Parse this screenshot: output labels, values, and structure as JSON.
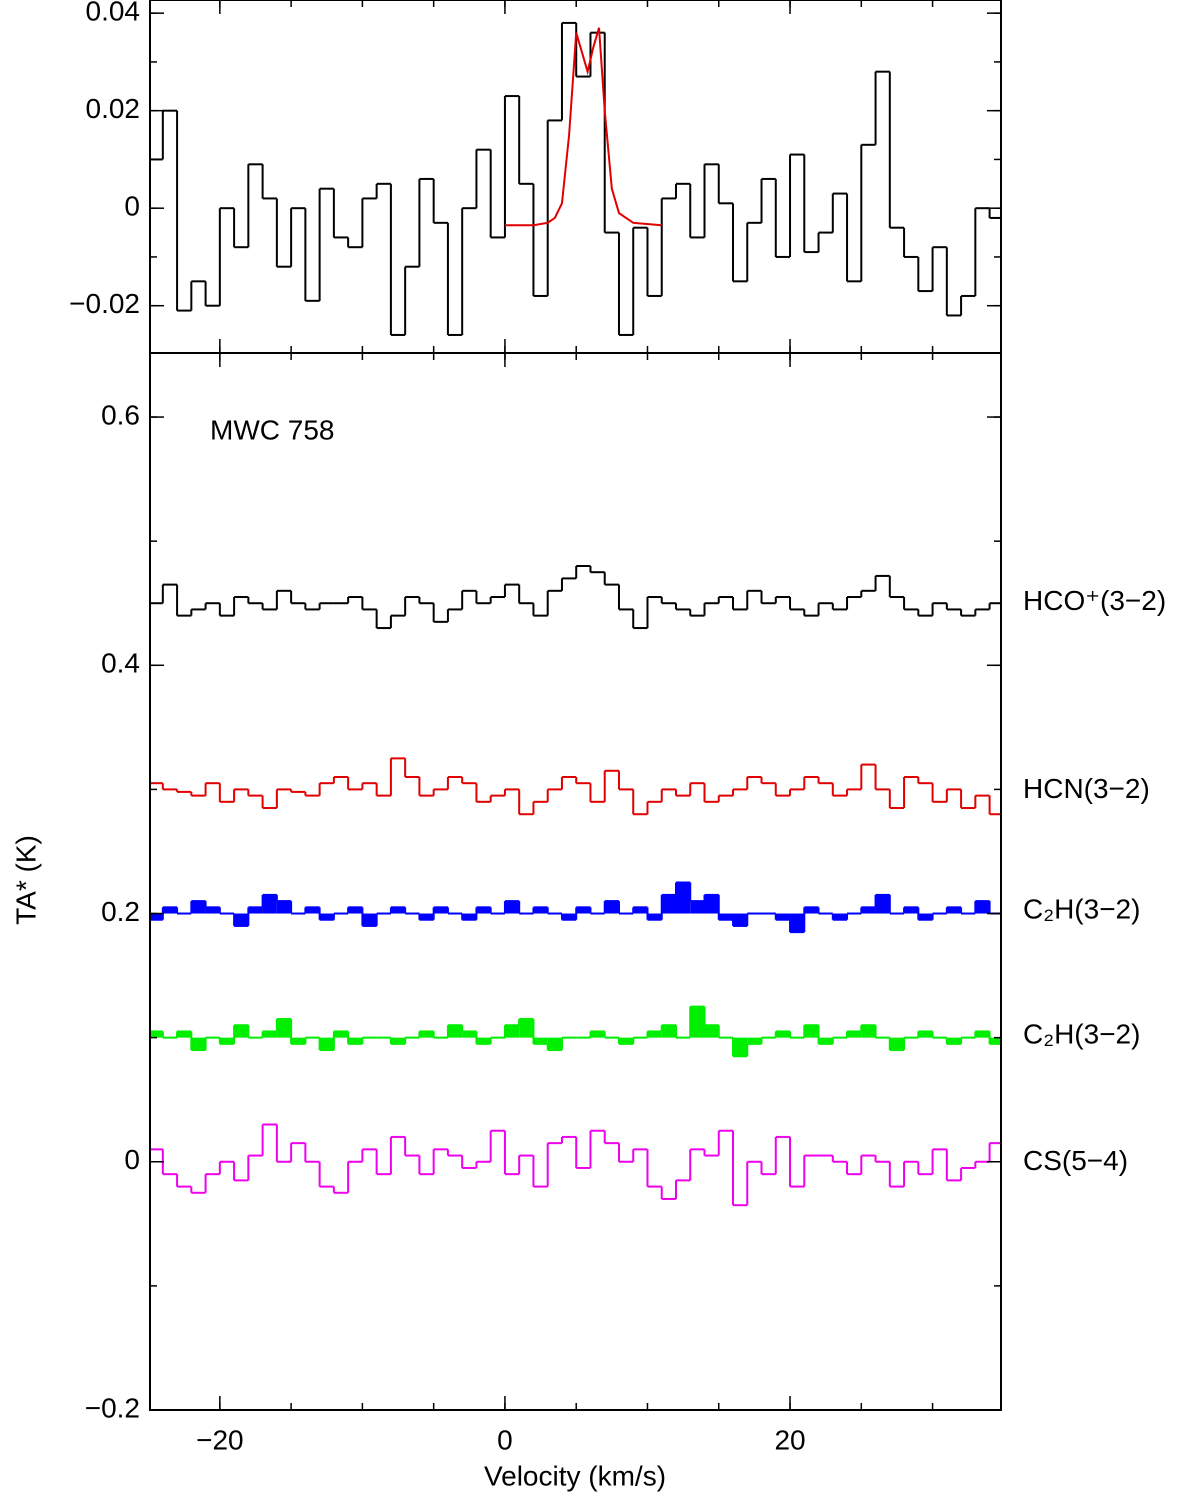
{
  "chart_data": [
    {
      "type": "step",
      "xlim": [
        -24.9,
        34.8
      ],
      "ylim": [
        -0.0297,
        0.0427
      ],
      "yticks": [
        {
          "value": -0.02,
          "label": "−0.02"
        },
        0,
        0.02,
        0.04
      ],
      "x": [
        -24.5,
        -23.5,
        -22.5,
        -21.5,
        -20.5,
        -19.5,
        -18.5,
        -17.5,
        -16.5,
        -15.5,
        -14.5,
        -13.5,
        -12.5,
        -11.5,
        -10.5,
        -9.5,
        -8.5,
        -7.5,
        -6.5,
        -5.5,
        -4.5,
        -3.5,
        -2.5,
        -1.5,
        -0.5,
        0.5,
        1.5,
        2.5,
        3.5,
        4.5,
        5.5,
        6.5,
        7.5,
        8.5,
        9.5,
        10.5,
        11.5,
        12.5,
        13.5,
        14.5,
        15.5,
        16.5,
        17.5,
        18.5,
        19.5,
        20.5,
        21.5,
        22.5,
        23.5,
        24.5,
        25.5,
        26.5,
        27.5,
        28.5,
        29.5,
        30.5,
        31.5,
        32.5,
        33.5,
        34.5
      ],
      "series": [
        {
          "color": "#000000",
          "style": "step",
          "values": [
            0.01,
            0.02,
            -0.021,
            -0.015,
            -0.02,
            0.0,
            -0.008,
            0.009,
            0.002,
            -0.012,
            0.0,
            -0.019,
            0.004,
            -0.006,
            -0.008,
            0.002,
            0.005,
            -0.026,
            -0.012,
            0.006,
            -0.003,
            -0.026,
            0.0,
            0.012,
            -0.006,
            0.023,
            0.005,
            -0.018,
            0.018,
            0.038,
            0.027,
            0.036,
            -0.005,
            -0.026,
            -0.004,
            -0.018,
            0.002,
            0.005,
            -0.006,
            0.009,
            0.001,
            -0.015,
            -0.003,
            0.006,
            -0.01,
            0.011,
            -0.009,
            -0.005,
            0.003,
            -0.015,
            0.013,
            0.028,
            -0.004,
            -0.01,
            -0.017,
            -0.008,
            -0.022,
            -0.018,
            0.0,
            -0.002
          ]
        },
        {
          "color": "#e00000",
          "style": "line",
          "x": [
            0,
            2,
            3,
            3.5,
            4,
            4.5,
            5,
            5.4,
            5.8,
            6.2,
            6.6,
            7,
            7.5,
            8,
            9,
            11
          ],
          "values": [
            -0.0035,
            -0.0035,
            -0.003,
            -0.002,
            0.001,
            0.015,
            0.036,
            0.032,
            0.028,
            0.033,
            0.037,
            0.02,
            0.004,
            -0.001,
            -0.003,
            -0.0035
          ]
        }
      ]
    },
    {
      "type": "step",
      "annotation": "MWC 758",
      "x_label": "Velocity (km/s)",
      "y_label": "TA* (K)",
      "xlim": [
        -24.9,
        34.8
      ],
      "ylim": [
        -0.2,
        0.6516
      ],
      "xticks": [
        {
          "value": -20,
          "label": "−20"
        },
        0,
        20
      ],
      "yticks": [
        {
          "value": -0.2,
          "label": "−0.2"
        },
        0,
        0.2,
        0.4,
        0.6
      ],
      "x": [
        -24.5,
        -23.5,
        -22.5,
        -21.5,
        -20.5,
        -19.5,
        -18.5,
        -17.5,
        -16.5,
        -15.5,
        -14.5,
        -13.5,
        -12.5,
        -11.5,
        -10.5,
        -9.5,
        -8.5,
        -7.5,
        -6.5,
        -5.5,
        -4.5,
        -3.5,
        -2.5,
        -1.5,
        -0.5,
        0.5,
        1.5,
        2.5,
        3.5,
        4.5,
        5.5,
        6.5,
        7.5,
        8.5,
        9.5,
        10.5,
        11.5,
        12.5,
        13.5,
        14.5,
        15.5,
        16.5,
        17.5,
        18.5,
        19.5,
        20.5,
        21.5,
        22.5,
        23.5,
        24.5,
        25.5,
        26.5,
        27.5,
        28.5,
        29.5,
        30.5,
        31.5,
        32.5,
        33.5,
        34.5
      ],
      "series": [
        {
          "name": "HCO⁺(3−2)",
          "color": "#000000",
          "style": "step",
          "values": [
            0.45,
            0.465,
            0.44,
            0.445,
            0.45,
            0.44,
            0.455,
            0.45,
            0.445,
            0.46,
            0.45,
            0.445,
            0.45,
            0.45,
            0.455,
            0.445,
            0.43,
            0.44,
            0.455,
            0.45,
            0.435,
            0.445,
            0.46,
            0.45,
            0.455,
            0.465,
            0.45,
            0.44,
            0.46,
            0.47,
            0.48,
            0.475,
            0.465,
            0.445,
            0.43,
            0.455,
            0.45,
            0.445,
            0.44,
            0.45,
            0.455,
            0.445,
            0.46,
            0.45,
            0.455,
            0.445,
            0.44,
            0.45,
            0.445,
            0.455,
            0.46,
            0.472,
            0.455,
            0.445,
            0.44,
            0.45,
            0.445,
            0.44,
            0.445,
            0.45
          ]
        },
        {
          "name": "HCN(3−2)",
          "color": "#e00000",
          "style": "step",
          "values": [
            0.305,
            0.3,
            0.298,
            0.295,
            0.305,
            0.29,
            0.3,
            0.295,
            0.285,
            0.3,
            0.298,
            0.295,
            0.305,
            0.31,
            0.3,
            0.305,
            0.295,
            0.325,
            0.31,
            0.295,
            0.3,
            0.31,
            0.305,
            0.29,
            0.295,
            0.3,
            0.28,
            0.29,
            0.3,
            0.31,
            0.305,
            0.29,
            0.315,
            0.3,
            0.28,
            0.29,
            0.3,
            0.295,
            0.305,
            0.29,
            0.295,
            0.3,
            0.31,
            0.305,
            0.295,
            0.3,
            0.31,
            0.305,
            0.295,
            0.3,
            0.32,
            0.3,
            0.285,
            0.31,
            0.305,
            0.29,
            0.3,
            0.285,
            0.295,
            0.28
          ]
        },
        {
          "name": "C₂H(3−2)",
          "color": "#0000ff",
          "style": "step",
          "fill_to": 0.2,
          "values": [
            0.195,
            0.205,
            0.2,
            0.21,
            0.205,
            0.2,
            0.19,
            0.205,
            0.215,
            0.21,
            0.2,
            0.205,
            0.195,
            0.2,
            0.205,
            0.19,
            0.2,
            0.205,
            0.2,
            0.195,
            0.205,
            0.2,
            0.195,
            0.205,
            0.2,
            0.21,
            0.2,
            0.205,
            0.2,
            0.195,
            0.205,
            0.2,
            0.21,
            0.2,
            0.205,
            0.195,
            0.215,
            0.225,
            0.21,
            0.215,
            0.195,
            0.19,
            0.2,
            0.2,
            0.195,
            0.185,
            0.205,
            0.2,
            0.195,
            0.2,
            0.205,
            0.215,
            0.2,
            0.205,
            0.195,
            0.2,
            0.205,
            0.2,
            0.21,
            0.2
          ]
        },
        {
          "name": "C₂H(3−2)",
          "color": "#00ee00",
          "style": "step",
          "fill_to": 0.1,
          "values": [
            0.105,
            0.1,
            0.105,
            0.09,
            0.1,
            0.095,
            0.11,
            0.1,
            0.105,
            0.115,
            0.095,
            0.1,
            0.09,
            0.105,
            0.095,
            0.1,
            0.1,
            0.095,
            0.1,
            0.105,
            0.1,
            0.11,
            0.105,
            0.095,
            0.1,
            0.11,
            0.115,
            0.095,
            0.09,
            0.1,
            0.1,
            0.105,
            0.1,
            0.095,
            0.1,
            0.105,
            0.11,
            0.1,
            0.125,
            0.11,
            0.1,
            0.085,
            0.095,
            0.1,
            0.105,
            0.1,
            0.11,
            0.095,
            0.1,
            0.105,
            0.11,
            0.1,
            0.09,
            0.1,
            0.105,
            0.1,
            0.095,
            0.1,
            0.105,
            0.095
          ]
        },
        {
          "name": "CS(5−4)",
          "color": "#ee00ee",
          "style": "step",
          "values": [
            0.01,
            -0.01,
            -0.02,
            -0.025,
            -0.01,
            0.0,
            -0.015,
            0.005,
            0.03,
            0.0,
            0.015,
            0.0,
            -0.02,
            -0.025,
            0.0,
            0.01,
            -0.01,
            0.02,
            0.005,
            -0.01,
            0.01,
            0.005,
            -0.005,
            0.0,
            0.025,
            -0.01,
            0.005,
            -0.02,
            0.015,
            0.02,
            -0.005,
            0.025,
            0.015,
            0.0,
            0.01,
            -0.02,
            -0.03,
            -0.015,
            0.01,
            0.005,
            0.025,
            -0.035,
            0.0,
            -0.01,
            0.02,
            -0.02,
            0.005,
            0.005,
            0.0,
            -0.01,
            0.005,
            0.0,
            -0.02,
            0.0,
            -0.01,
            0.01,
            -0.015,
            -0.005,
            0.0,
            0.015
          ]
        }
      ]
    }
  ]
}
